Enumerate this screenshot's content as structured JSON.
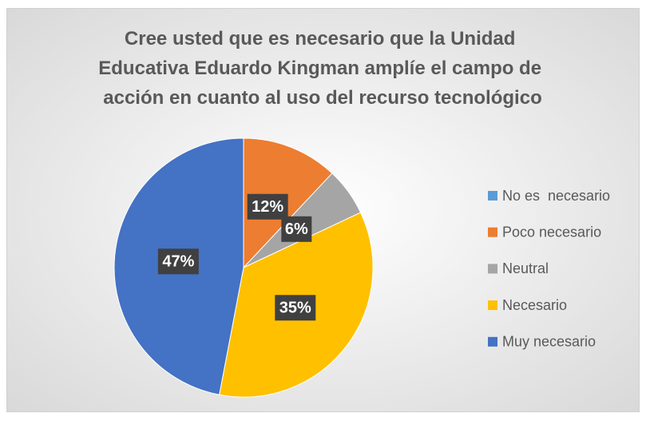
{
  "chart_data": {
    "type": "pie",
    "title": "Cree usted que es necesario que la Unidad Educativa Eduardo Kingman amplíe el campo de acción en cuanto al uso del recurso tecnológico",
    "categories": [
      "No es  necesario",
      "Poco necesario",
      "Neutral",
      "Necesario",
      "Muy necesario"
    ],
    "values": [
      0,
      12,
      6,
      35,
      47
    ],
    "value_labels": [
      null,
      "12%",
      "6%",
      "35%",
      "47%"
    ],
    "colors": [
      "#5b9bd5",
      "#ed7d31",
      "#a5a5a5",
      "#ffc000",
      "#4472c4"
    ],
    "legend": "right"
  }
}
